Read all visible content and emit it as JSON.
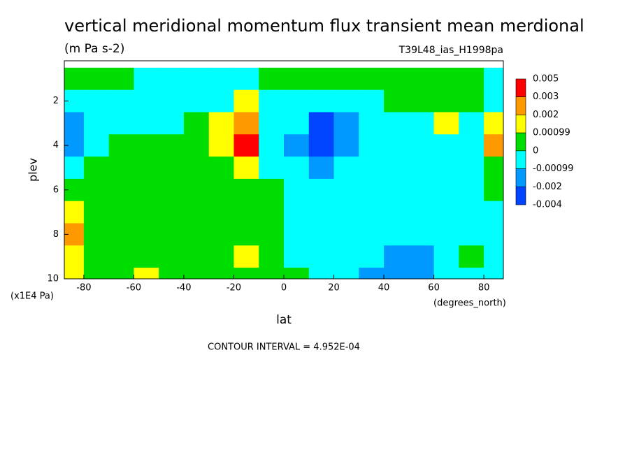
{
  "chart_data": {
    "type": "contour",
    "title": "vertical meridional momentum flux transient mean merdional",
    "subtitle": "(m Pa s-2)",
    "dataset": "T39L48_ias_H1998pa",
    "x_label": "lat",
    "x_units": "(degrees_north)",
    "y_label": "plev",
    "y_units": "(x1E4 Pa)",
    "footnote": "CONTOUR INTERVAL = 4.952E-04",
    "x": [
      -85,
      -75,
      -65,
      -55,
      -45,
      -35,
      -25,
      -15,
      -5,
      5,
      15,
      25,
      35,
      45,
      55,
      65,
      75,
      85
    ],
    "y": [
      1,
      2,
      3,
      4,
      5,
      6,
      7,
      8,
      9,
      10
    ],
    "z": [
      [
        0.0005,
        0.0005,
        0.0005,
        -0.0005,
        -0.0005,
        -0.0005,
        -0.0005,
        -0.0005,
        0.0005,
        0.0005,
        0.0005,
        0.0005,
        0.0005,
        0.0005,
        0.0005,
        0.0005,
        0.0005,
        -0.0005
      ],
      [
        -0.0005,
        -0.0005,
        -0.0005,
        -0.0005,
        -0.0005,
        -0.0005,
        -0.0005,
        0.0015,
        -0.0005,
        -0.0005,
        -0.0005,
        -0.0005,
        -0.0005,
        0.0005,
        0.0005,
        0.0005,
        0.0005,
        -0.0005
      ],
      [
        -0.0015,
        -0.0005,
        -0.0005,
        -0.0005,
        -0.0005,
        0.0005,
        0.0015,
        0.0025,
        -0.0005,
        -0.0005,
        -0.0025,
        -0.0015,
        -0.0005,
        -0.0005,
        -0.0005,
        0.0015,
        -0.0005,
        0.0015
      ],
      [
        -0.0015,
        -0.0005,
        0.0005,
        0.0005,
        0.0005,
        0.0005,
        0.0015,
        0.0035,
        -0.0005,
        -0.0015,
        -0.0025,
        -0.0015,
        -0.0005,
        -0.0005,
        -0.0005,
        -0.0005,
        -0.0005,
        0.0025
      ],
      [
        -0.0005,
        0.0005,
        0.0005,
        0.0005,
        0.0005,
        0.0005,
        0.0005,
        0.0015,
        -0.0005,
        -0.0005,
        -0.0015,
        -0.0005,
        -0.0005,
        -0.0005,
        -0.0005,
        -0.0005,
        -0.0005,
        0.0005
      ],
      [
        0.0005,
        0.0005,
        0.0005,
        0.0005,
        0.0005,
        0.0005,
        0.0005,
        0.0005,
        0.0005,
        -0.0005,
        -0.0005,
        -0.0005,
        -0.0005,
        -0.0005,
        -0.0005,
        -0.0005,
        -0.0005,
        0.0005
      ],
      [
        0.0015,
        0.0005,
        0.0005,
        0.0005,
        0.0005,
        0.0005,
        0.0005,
        0.0005,
        0.0005,
        -0.0005,
        -0.0005,
        -0.0005,
        -0.0005,
        -0.0005,
        -0.0005,
        -0.0005,
        -0.0005,
        -0.0005
      ],
      [
        0.0025,
        0.0005,
        0.0005,
        0.0005,
        0.0005,
        0.0005,
        0.0005,
        0.0005,
        0.0005,
        -0.0005,
        -0.0005,
        -0.0005,
        -0.0005,
        -0.0005,
        -0.0005,
        -0.0005,
        -0.0005,
        -0.0005
      ],
      [
        0.0015,
        0.0005,
        0.0005,
        0.0005,
        0.0005,
        0.0005,
        0.0005,
        0.0015,
        0.0005,
        -0.0005,
        -0.0005,
        -0.0005,
        -0.0005,
        -0.0015,
        -0.0015,
        -0.0005,
        0.0005,
        -0.0005
      ],
      [
        0.0015,
        0.0005,
        0.0005,
        0.0015,
        0.0005,
        0.0005,
        0.0005,
        0.0005,
        0.0005,
        0.0005,
        -0.0005,
        -0.0005,
        -0.0015,
        -0.0015,
        -0.0015,
        -0.0005,
        -0.0005,
        -0.0005
      ]
    ],
    "levels": [
      0.005,
      0.003,
      0.002,
      0.00099,
      0,
      -0.00099,
      -0.002,
      -0.004
    ],
    "level_colors": [
      "#ff0000",
      "#ff9900",
      "#ffff00",
      "#00dd00",
      "#00ffff",
      "#0099ff",
      "#0044ff"
    ],
    "xlim": [
      -87.8,
      87.8
    ],
    "ylim": [
      10,
      0.19
    ],
    "xticks": [
      -80,
      -60,
      -40,
      -20,
      0,
      20,
      40,
      60,
      80
    ],
    "yticks": [
      2,
      4,
      6,
      8,
      10
    ]
  }
}
